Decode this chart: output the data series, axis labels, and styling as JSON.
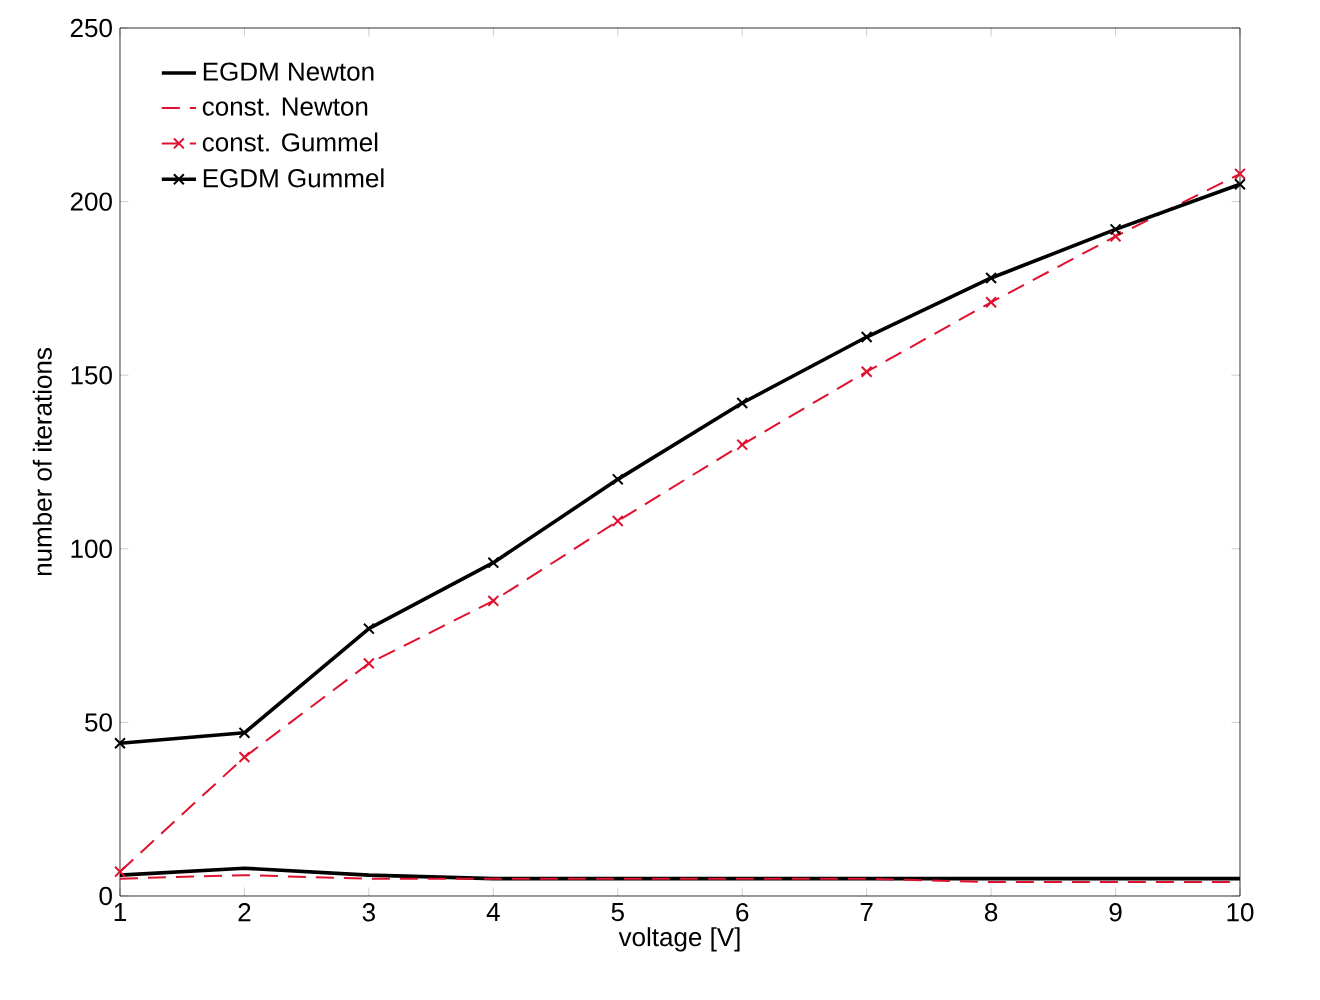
{
  "chart_data": {
    "type": "line",
    "xlabel": "voltage [V]",
    "ylabel": "number of iterations",
    "x": [
      1,
      2,
      3,
      4,
      5,
      6,
      7,
      8,
      9,
      10
    ],
    "xlim": [
      1,
      10
    ],
    "xticks": [
      1,
      2,
      3,
      4,
      5,
      6,
      7,
      8,
      9,
      10
    ],
    "ylim": [
      0,
      250
    ],
    "yticks": [
      0,
      50,
      100,
      150,
      200,
      250
    ],
    "legend": "top left",
    "series": [
      {
        "name": "EGDM Newton",
        "color": "#000000",
        "line_style": "solid",
        "marker": "none",
        "values": [
          6,
          8,
          6,
          5,
          5,
          5,
          5,
          5,
          5,
          5
        ]
      },
      {
        "name": "const. Newton",
        "color": "#e0102f",
        "line_style": "dashed",
        "marker": "none",
        "values": [
          5,
          6,
          5,
          5,
          5,
          5,
          5,
          4,
          4,
          4
        ]
      },
      {
        "name": "const. Gummel",
        "color": "#e0102f",
        "line_style": "dashed",
        "marker": "cross",
        "values": [
          7,
          40,
          67,
          85,
          108,
          130,
          151,
          171,
          190,
          208
        ]
      },
      {
        "name": "EGDM Gummel",
        "color": "#000000",
        "line_style": "solid",
        "marker": "cross",
        "values": [
          44,
          47,
          77,
          96,
          120,
          142,
          161,
          178,
          192,
          205
        ]
      }
    ]
  }
}
